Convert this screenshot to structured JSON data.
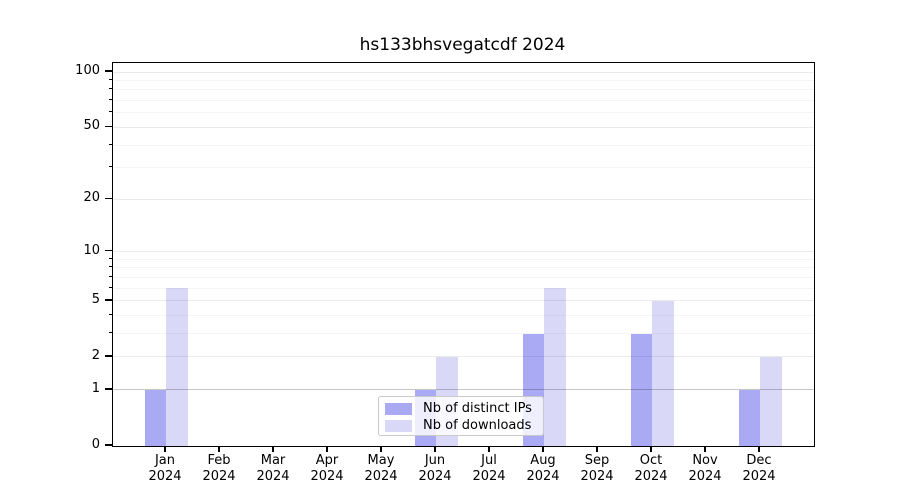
{
  "title": "hs133bhsvegatcdf 2024",
  "colors": {
    "distinct_ips_bar": "#a9a9f4",
    "downloads_bar": "#d9d9f7",
    "axis": "#000000",
    "grid_major": "rgba(0,0,0,0.08)",
    "grid_minor": "rgba(0,0,0,0.045)",
    "grid_unit_line": "rgba(0,0,0,0.22)",
    "legend_border": "#c9c9c9"
  },
  "legend": {
    "items": [
      {
        "label": "Nb of distinct IPs",
        "color": "#a9a9f4"
      },
      {
        "label": "Nb of downloads",
        "color": "#d9d9f7"
      }
    ],
    "position": "lower center"
  },
  "chart_data": {
    "type": "bar",
    "title": "hs133bhsvegatcdf 2024",
    "categories": [
      "Jan 2024",
      "Feb 2024",
      "Mar 2024",
      "Apr 2024",
      "May 2024",
      "Jun 2024",
      "Jul 2024",
      "Aug 2024",
      "Sep 2024",
      "Oct 2024",
      "Nov 2024",
      "Dec 2024"
    ],
    "series": [
      {
        "name": "Nb of distinct IPs",
        "color": "#a9a9f4",
        "values": [
          1,
          0,
          0,
          0,
          0,
          1,
          0,
          3,
          0,
          3,
          0,
          1
        ]
      },
      {
        "name": "Nb of downloads",
        "color": "#d9d9f7",
        "values": [
          6,
          0,
          0,
          0,
          0,
          2,
          0,
          6,
          0,
          5,
          0,
          2
        ]
      }
    ],
    "xlabel": "",
    "ylabel": "",
    "y_scale": "log10(1+x)",
    "ylim": [
      0,
      112
    ],
    "y_major_ticks": [
      0,
      1,
      2,
      5,
      10,
      20,
      50,
      100
    ],
    "y_minor_ticks": [
      3,
      4,
      6,
      7,
      8,
      9,
      30,
      40,
      60,
      70,
      80,
      90
    ],
    "grid": true,
    "legend_position": "lower center"
  }
}
